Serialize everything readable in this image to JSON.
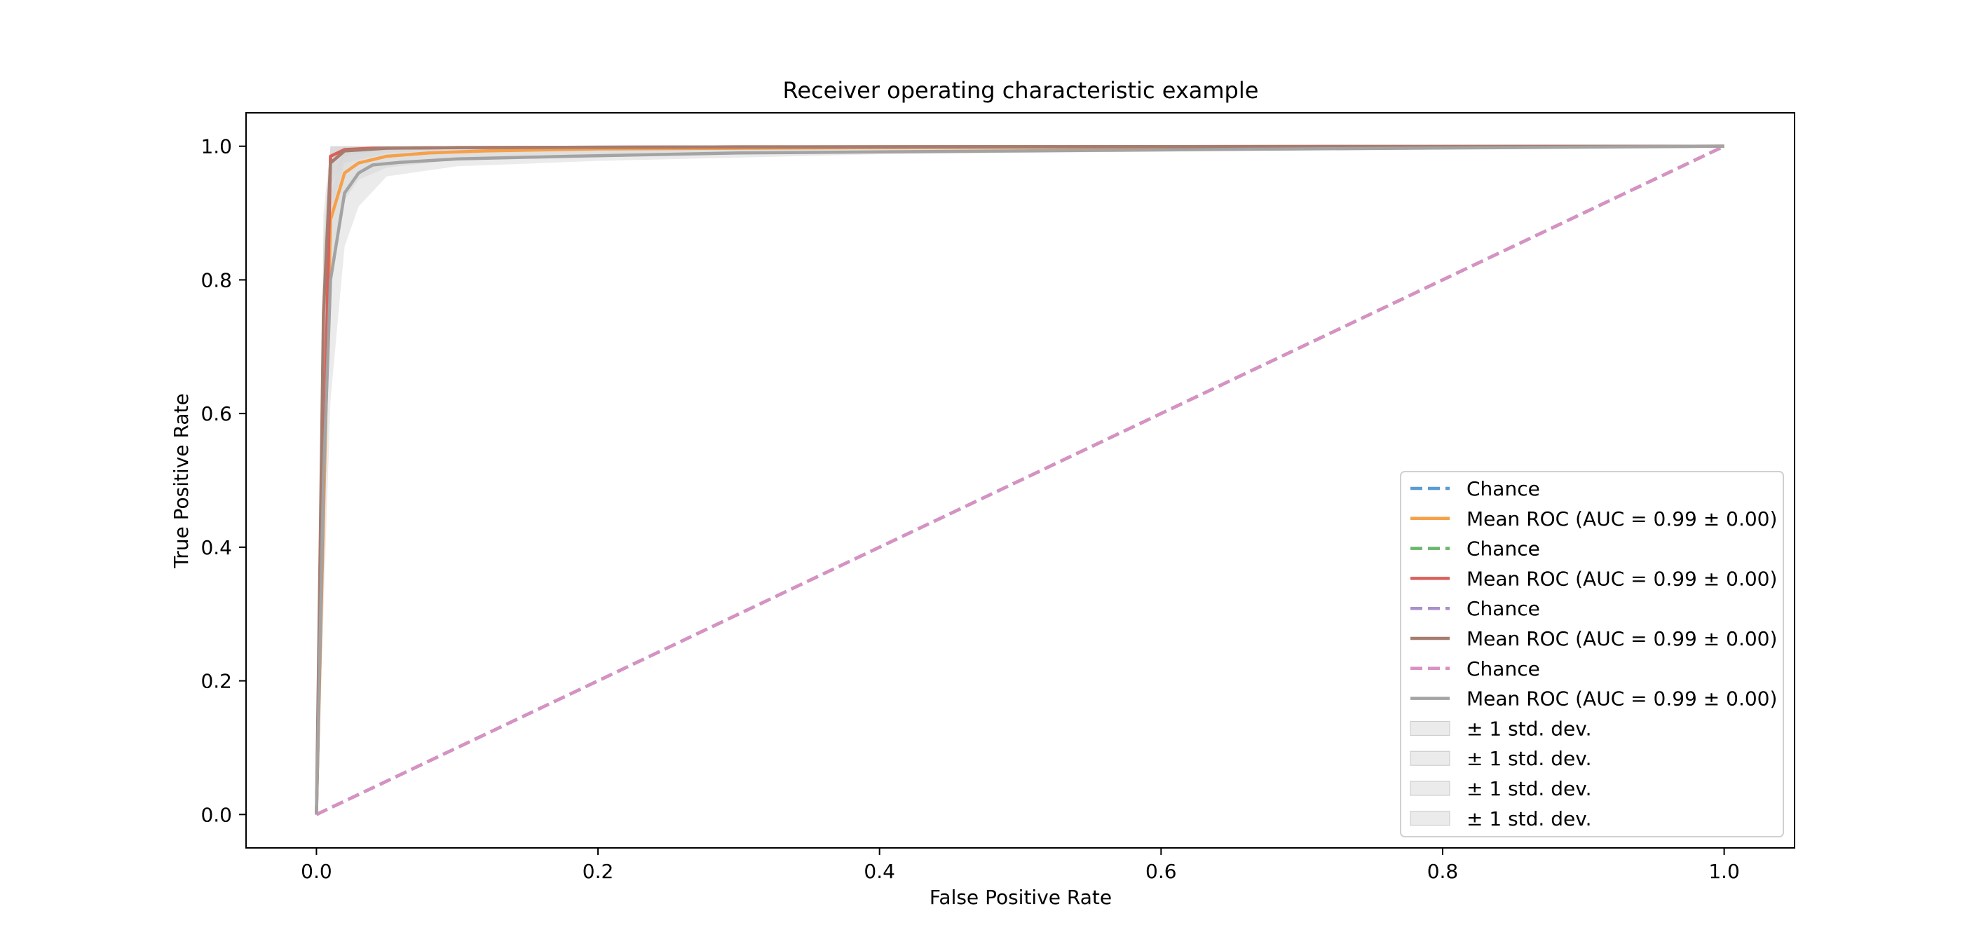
{
  "chart_data": {
    "type": "line",
    "title": "Receiver operating characteristic example",
    "xlabel": "False Positive Rate",
    "ylabel": "True Positive Rate",
    "xlim": [
      -0.05,
      1.05
    ],
    "ylim": [
      -0.05,
      1.05
    ],
    "xticks": [
      0.0,
      0.2,
      0.4,
      0.6,
      0.8,
      1.0
    ],
    "xtick_labels": [
      "0.0",
      "0.2",
      "0.4",
      "0.6",
      "0.8",
      "1.0"
    ],
    "yticks": [
      0.0,
      0.2,
      0.4,
      0.6,
      0.8,
      1.0
    ],
    "ytick_labels": [
      "0.0",
      "0.2",
      "0.4",
      "0.6",
      "0.8",
      "1.0"
    ],
    "grid": false,
    "legend_position": "lower-right",
    "series": [
      {
        "name": "Chance",
        "color": "#5b9bd5",
        "style": "dashed",
        "x": [
          0,
          1
        ],
        "y": [
          0,
          1
        ]
      },
      {
        "name": "Mean ROC (AUC = 0.99 ± 0.00)",
        "color": "#f5a04a",
        "style": "solid",
        "x": [
          0,
          0.01,
          0.02,
          0.03,
          0.05,
          0.08,
          0.12,
          0.2,
          0.4,
          1.0
        ],
        "y": [
          0,
          0.89,
          0.96,
          0.975,
          0.985,
          0.99,
          0.993,
          0.996,
          0.998,
          1.0
        ]
      },
      {
        "name": "Chance",
        "color": "#6ab56a",
        "style": "dashed",
        "x": [
          0,
          1
        ],
        "y": [
          0,
          1
        ]
      },
      {
        "name": "Mean ROC (AUC = 0.99 ± 0.00)",
        "color": "#d9605a",
        "style": "solid",
        "x": [
          0,
          0.01,
          0.02,
          0.04,
          0.1,
          0.3,
          1.0
        ],
        "y": [
          0,
          0.985,
          0.995,
          0.997,
          0.998,
          0.999,
          1.0
        ]
      },
      {
        "name": "Chance",
        "color": "#a98fcb",
        "style": "dashed",
        "x": [
          0,
          1
        ],
        "y": [
          0,
          1
        ]
      },
      {
        "name": "Mean ROC (AUC = 0.99 ± 0.00)",
        "color": "#a67c6f",
        "style": "solid",
        "x": [
          0,
          0.005,
          0.01,
          0.02,
          0.05,
          0.1,
          0.3,
          1.0
        ],
        "y": [
          0,
          0.75,
          0.975,
          0.993,
          0.997,
          0.998,
          0.999,
          1.0
        ]
      },
      {
        "name": "Chance",
        "color": "#d891c2",
        "style": "dashed",
        "x": [
          0,
          1
        ],
        "y": [
          0,
          1
        ]
      },
      {
        "name": "Mean ROC (AUC = 0.99 ± 0.00)",
        "color": "#a3a3a3",
        "style": "solid",
        "x": [
          0,
          0.005,
          0.01,
          0.02,
          0.03,
          0.04,
          0.06,
          0.1,
          0.18,
          0.3,
          0.5,
          0.7,
          1.0
        ],
        "y": [
          0,
          0.5,
          0.8,
          0.93,
          0.96,
          0.972,
          0.976,
          0.981,
          0.985,
          0.99,
          0.993,
          0.996,
          1.0
        ]
      }
    ],
    "std_bands": [
      {
        "name": "± 1 std. dev.",
        "color": "#d3d3d3",
        "x": [
          0,
          0.005,
          0.01,
          0.02,
          0.03,
          0.05,
          0.1,
          0.2,
          1.0
        ],
        "upper": [
          0,
          0.86,
          1.0,
          1.0,
          1.0,
          1.0,
          1.0,
          1.0,
          1.0
        ],
        "lower": [
          0,
          0.55,
          0.8,
          0.92,
          0.95,
          0.968,
          0.98,
          0.988,
          1.0
        ]
      },
      {
        "name": "± 1 std. dev.",
        "color": "#d3d3d3",
        "x": [
          0,
          0.005,
          0.01,
          0.02,
          0.04,
          0.1,
          1.0
        ],
        "upper": [
          0,
          0.9,
          1.0,
          1.0,
          1.0,
          1.0,
          1.0
        ],
        "lower": [
          0,
          0.6,
          0.94,
          0.985,
          0.992,
          0.996,
          1.0
        ]
      },
      {
        "name": "± 1 std. dev.",
        "color": "#d3d3d3",
        "x": [
          0,
          0.005,
          0.01,
          0.02,
          0.05,
          0.1,
          1.0
        ],
        "upper": [
          0,
          0.85,
          1.0,
          1.0,
          1.0,
          1.0,
          1.0
        ],
        "lower": [
          0,
          0.55,
          0.9,
          0.975,
          0.99,
          0.995,
          1.0
        ]
      },
      {
        "name": "± 1 std. dev.",
        "color": "#d3d3d3",
        "x": [
          0,
          0.005,
          0.01,
          0.02,
          0.03,
          0.05,
          0.1,
          0.2,
          0.4,
          1.0
        ],
        "upper": [
          0,
          0.7,
          0.93,
          1.0,
          1.0,
          1.0,
          1.0,
          1.0,
          1.0,
          1.0
        ],
        "lower": [
          0,
          0.3,
          0.62,
          0.85,
          0.91,
          0.955,
          0.97,
          0.978,
          0.988,
          1.0
        ]
      }
    ]
  }
}
